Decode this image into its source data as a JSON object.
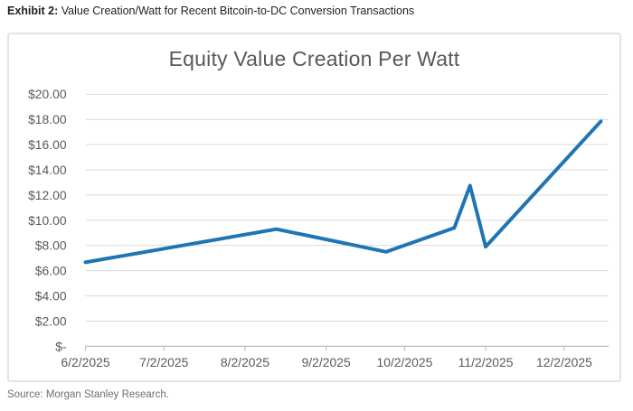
{
  "header": {
    "exhibit_label": "Exhibit 2:",
    "description": " Value Creation/Watt for Recent Bitcoin-to-DC Conversion Transactions"
  },
  "source": {
    "text": "Source: Morgan Stanley Research."
  },
  "colors": {
    "line": "#1f75b4",
    "grid": "#d9d9d9",
    "axis": "#bfbfbf",
    "tick_text": "#595959",
    "title_text": "#595959"
  },
  "chart_data": {
    "type": "line",
    "title": "Equity Value Creation Per Watt",
    "xlabel": "",
    "ylabel": "",
    "grid": "horizontal",
    "legend": "none",
    "x_axis": {
      "type": "date",
      "tick_labels": [
        "6/2/2025",
        "7/2/2025",
        "8/2/2025",
        "9/2/2025",
        "10/2/2025",
        "11/2/2025",
        "12/2/2025"
      ],
      "axis_range_days_from_start": [
        0,
        200
      ]
    },
    "y_axis": {
      "tick_labels": [
        "$-",
        "$2.00",
        "$4.00",
        "$6.00",
        "$8.00",
        "$10.00",
        "$12.00",
        "$14.00",
        "$16.00",
        "$18.00",
        "$20.00"
      ],
      "tick_values": [
        0,
        2,
        4,
        6,
        8,
        10,
        12,
        14,
        16,
        18,
        20
      ],
      "ylim": [
        0,
        20
      ]
    },
    "series": [
      {
        "name": "Equity Value Creation Per Watt",
        "color": "#1f75b4",
        "points": [
          {
            "date": "6/2/2025",
            "value": 6.67
          },
          {
            "date": "8/14/2025",
            "value": 9.3
          },
          {
            "date": "9/25/2025",
            "value": 7.5
          },
          {
            "date": "10/21/2025",
            "value": 9.4
          },
          {
            "date": "10/27/2025",
            "value": 12.75
          },
          {
            "date": "11/2/2025",
            "value": 7.9
          },
          {
            "date": "12/16/2025",
            "value": 17.85
          }
        ]
      }
    ]
  }
}
